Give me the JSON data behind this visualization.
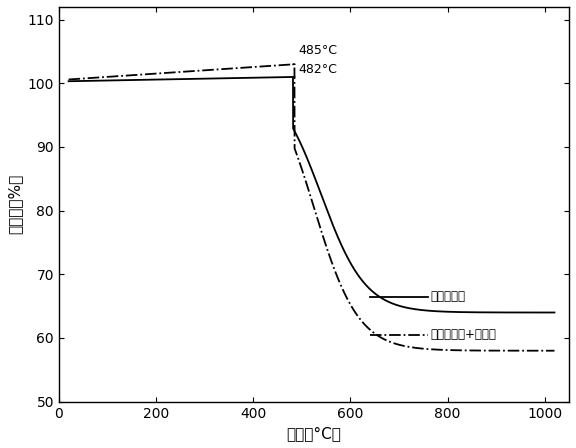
{
  "xlabel": "温度（°C）",
  "ylabel": "失重率（%）",
  "xlim": [
    0,
    1050
  ],
  "ylim": [
    50,
    112
  ],
  "xticks": [
    0,
    200,
    400,
    600,
    800,
    1000
  ],
  "yticks": [
    50,
    60,
    70,
    80,
    90,
    100,
    110
  ],
  "curve1_label": "低优混配煎",
  "curve2_label": "低优混配煎+催化剂",
  "annotation1": "485°C",
  "annotation2": "482°C",
  "background": "#ffffff",
  "curve1_end": 64.0,
  "curve1_peak": 101.0,
  "curve1_inflect": 540,
  "curve1_start": 100.3,
  "curve2_end": 58.0,
  "curve2_peak": 103.0,
  "curve2_inflect": 525,
  "curve2_start": 100.5
}
